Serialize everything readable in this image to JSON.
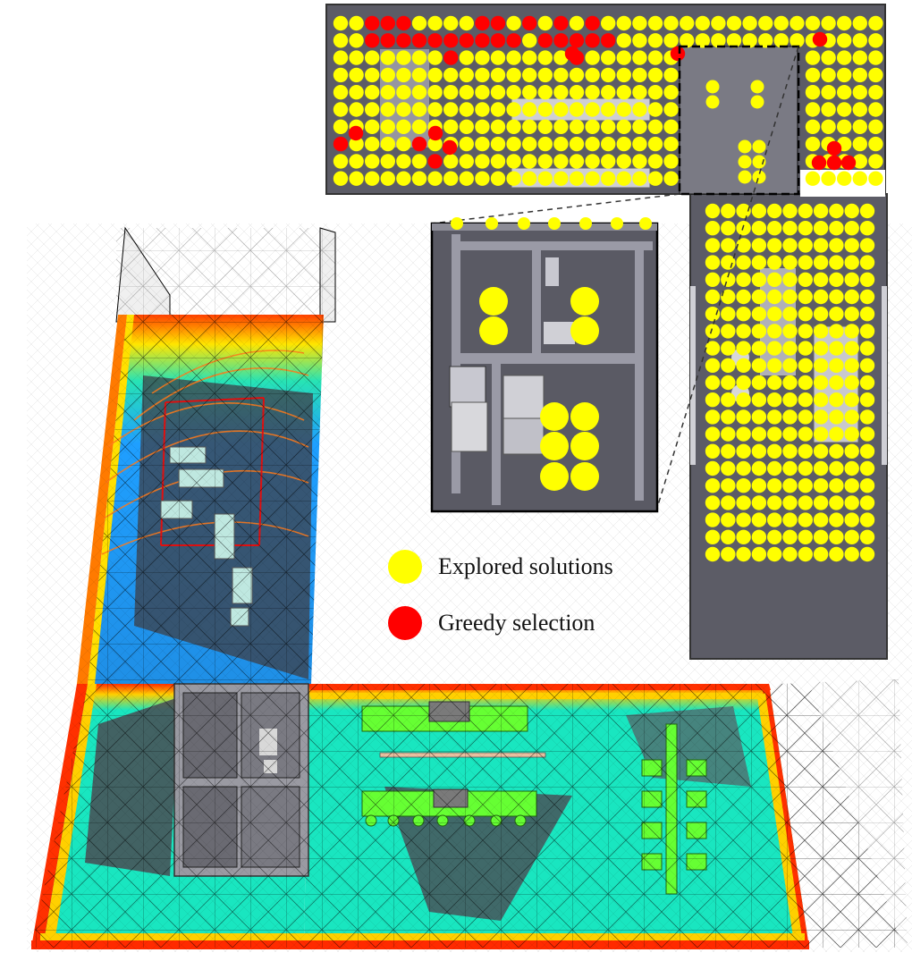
{
  "legend": {
    "explored": {
      "label": "Explored solutions",
      "color": "#ffff00"
    },
    "greedy": {
      "label": "Greedy selection",
      "color": "#ff0000"
    }
  },
  "palette": {
    "floor_dark": "#4a4a52",
    "wall": "#8c8c96",
    "furniture": "#c8c8c8",
    "heat_low": "#00e6c8",
    "heat_mid": "#2aa6ff",
    "heat_high": "#ff3000",
    "mesh": "#111111",
    "highlight_green": "#66ff33"
  }
}
